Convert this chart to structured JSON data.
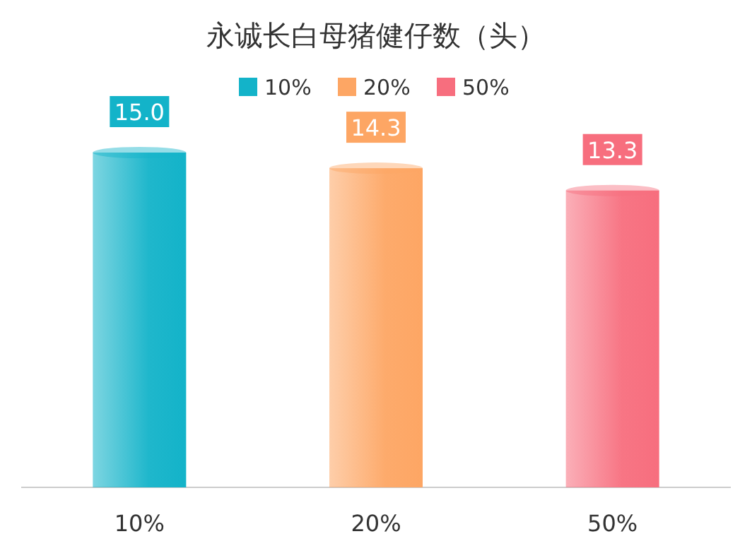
{
  "chart_data": {
    "type": "bar",
    "title": "永诚长白母猪健仔数（头）",
    "categories": [
      "10%",
      "20%",
      "50%"
    ],
    "stacked": true,
    "series": [
      {
        "name": "10%",
        "color": "#13b3c9",
        "values": [
          15.0,
          null,
          null
        ],
        "value_labels": [
          "15.0",
          null,
          null
        ]
      },
      {
        "name": "20%",
        "color": "#fda664",
        "values": [
          null,
          14.3,
          null
        ],
        "value_labels": [
          null,
          "14.3",
          null
        ]
      },
      {
        "name": "50%",
        "color": "#f76e7e",
        "values": [
          null,
          null,
          13.3
        ],
        "value_labels": [
          null,
          null,
          "13.3"
        ]
      }
    ],
    "legend": "top",
    "tick_labels": "x"
  }
}
